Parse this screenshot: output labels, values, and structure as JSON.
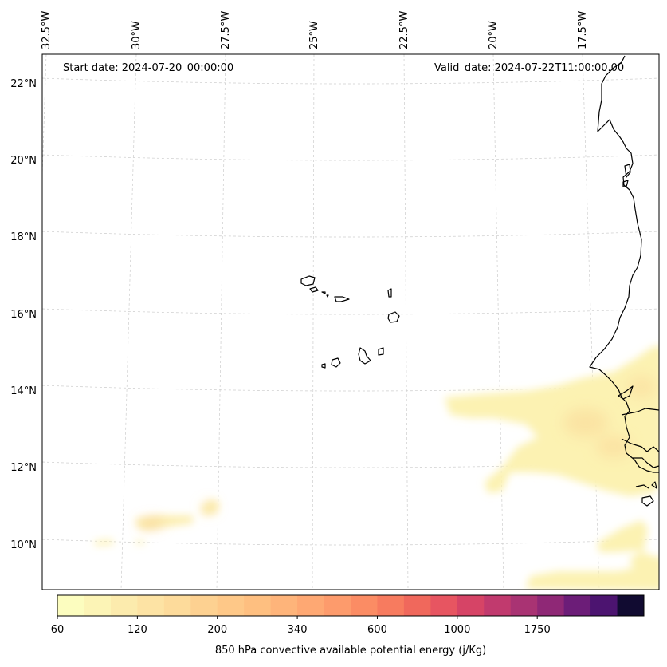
{
  "map": {
    "start_label": "Start date: 2024-07-20_00:00:00",
    "valid_label": "Valid_date: 2024-07-22T11:00:00.00",
    "lon_ticks": [
      "32.5°W",
      "30°W",
      "27.5°W",
      "25°W",
      "22.5°W",
      "20°W",
      "17.5°W"
    ],
    "lat_ticks": [
      "22°N",
      "20°N",
      "18°N",
      "16°N",
      "14°N",
      "12°N",
      "10°N"
    ],
    "gridline_color": "#cccccc",
    "coastline_color": "#000000"
  },
  "colorbar": {
    "title": "850 hPa convective available potential energy (j/Kg)",
    "tick_labels": [
      "60",
      "120",
      "200",
      "340",
      "600",
      "1000",
      "1750"
    ],
    "colors": [
      "#fcfdbf",
      "#fcf4b6",
      "#fcebad",
      "#fde3a4",
      "#fddb9b",
      "#fdd191",
      "#fec888",
      "#febf80",
      "#feb47a",
      "#fea873",
      "#fd9b6c",
      "#fb8c64",
      "#f77b5f",
      "#f0685c",
      "#e75561",
      "#d64466",
      "#c13a6e",
      "#a93373",
      "#8f2876",
      "#6c1d78",
      "#4c1470",
      "#110b31"
    ]
  }
}
